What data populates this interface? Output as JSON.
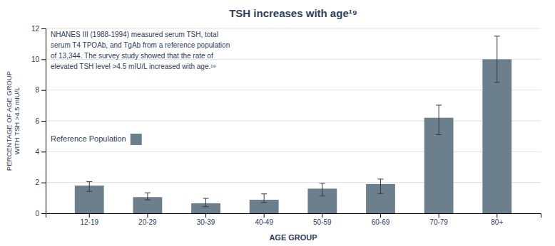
{
  "chart_data": {
    "type": "bar",
    "title": "TSH increases with age¹⁹",
    "categories": [
      "12-19",
      "20-29",
      "30-39",
      "40-49",
      "50-59",
      "60-69",
      "70-79",
      "80+"
    ],
    "series": [
      {
        "name": "Reference Population",
        "color": "#6b7f8c",
        "values": [
          1.8,
          1.05,
          0.65,
          0.88,
          1.6,
          1.9,
          6.2,
          10.0
        ],
        "errors_upper": [
          0.25,
          0.28,
          0.32,
          0.38,
          0.35,
          0.32,
          0.82,
          1.5
        ],
        "errors_lower": [
          0.38,
          0.18,
          0.22,
          0.18,
          0.48,
          0.62,
          1.1,
          1.5
        ]
      }
    ],
    "xlabel": "AGE GROUP",
    "ylabel": "PERCENTAGE OF AGE GROUP\nWITH TSH >4.5 mIU/L",
    "ylim": [
      0,
      12
    ],
    "yticks": [
      0,
      2,
      4,
      6,
      8,
      10,
      12
    ],
    "grid": true,
    "legend": "left",
    "annotation": "NHANES III (1988-1994) measured serum TSH, total\nserum T4 TPOAb, and TgAb from a reference population\nof 13,344. The survey study showed that the rate of\nelevated TSH level >4.5 mIU/L increased with age.¹⁹"
  }
}
